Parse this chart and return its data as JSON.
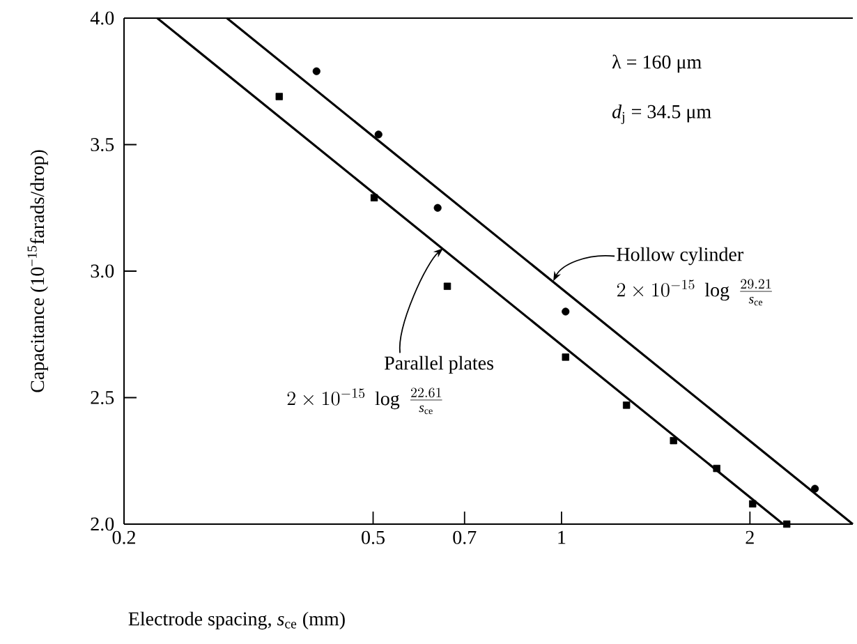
{
  "chart_data": {
    "type": "scatter",
    "xlabel": "Electrode spacing, *s*$_{ce}$ (mm)",
    "ylabel": "Capacitance (10$^{−15}$farads/drop)",
    "log": "x",
    "xlim": [
      0.2,
      2.92
    ],
    "ylim": [
      2.0,
      4.0
    ],
    "xticks": [
      0.2,
      0.5,
      0.7,
      1,
      2
    ],
    "yticks": [
      {
        "value": 2,
        "label": "2.0"
      },
      {
        "value": 2.5,
        "label": "2.5"
      },
      {
        "value": 3,
        "label": "3.0"
      },
      {
        "value": 3.5,
        "label": "3.5"
      },
      {
        "value": 4,
        "label": "4.0"
      }
    ],
    "grid": false,
    "series": [
      {
        "marker": "square",
        "color": "#000000",
        "x": [
          0.354,
          0.502,
          0.657,
          1.015,
          1.27,
          1.51,
          1.77,
          2.02,
          2.29
        ],
        "values": [
          3.69,
          3.29,
          2.94,
          2.66,
          2.47,
          2.33,
          2.22,
          2.08,
          2.0
        ]
      },
      {
        "marker": "circle",
        "color": "#000000",
        "x": [
          0.406,
          0.51,
          0.634,
          1.015,
          2.54
        ],
        "values": [
          3.79,
          3.54,
          3.25,
          2.84,
          2.14
        ]
      },
      {
        "type": "line",
        "marker": "none",
        "color": "#000000",
        "x": [
          0.226,
          2.26
        ],
        "values": [
          4.0,
          2.0
        ]
      },
      {
        "type": "line",
        "marker": "none",
        "color": "#000000",
        "x": [
          0.292,
          2.92
        ],
        "values": [
          4.0,
          2.0
        ]
      }
    ],
    "annotations": [
      "λ = 160 μm",
      "*d*$_{j}$ = 34.5 μm",
      {
        "text": "Hollow cylinder",
        "x": 0.97,
        "y": 2.96
      },
      "2\\times 10^{-15}\\;\\log\\;\\frac{29.21}{\\mathit{s}_{\\mathrm{ce}}}",
      {
        "text": "Parallel plates",
        "x": 0.647,
        "y": 3.09
      },
      "2\\times 10^{-15}\\;\\log\\;\\frac{22.61}{\\mathit{s}_{\\mathrm{ce}}}"
    ]
  }
}
